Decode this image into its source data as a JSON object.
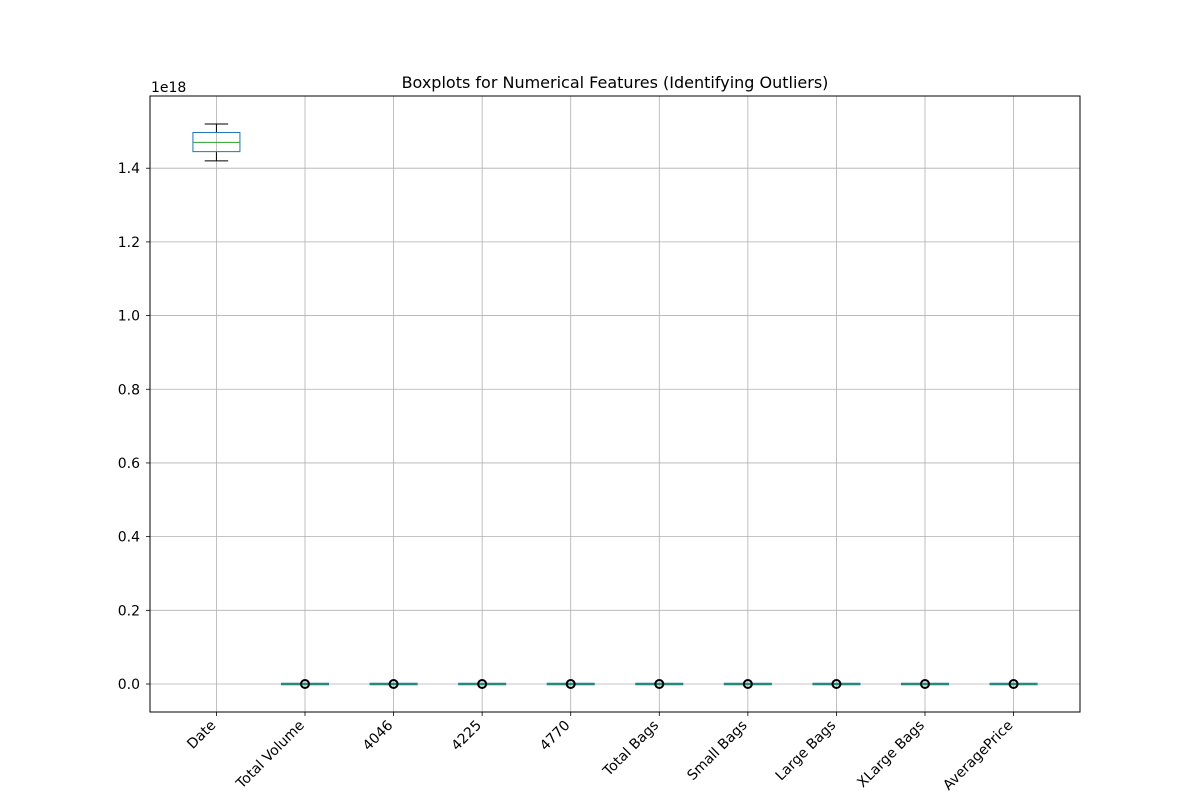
{
  "chart_data": {
    "type": "box",
    "title": "Boxplots for Numerical Features (Identifying Outliers)",
    "xlabel": "",
    "ylabel": "",
    "y_scale_offset_label": "1e18",
    "ylim": [
      -0.076,
      1.596
    ],
    "y_ticks": [
      0.0,
      0.2,
      0.4,
      0.6,
      0.8,
      1.0,
      1.2,
      1.4
    ],
    "y_tick_labels": [
      "0.0",
      "0.2",
      "0.4",
      "0.6",
      "0.8",
      "1.0",
      "1.2",
      "1.4"
    ],
    "grid": true,
    "categories": [
      "Date",
      "Total Volume",
      "4046",
      "4225",
      "4770",
      "Total Bags",
      "Small Bags",
      "Large Bags",
      "XLarge Bags",
      "AveragePrice"
    ],
    "boxes": [
      {
        "category": "Date",
        "whisker_low": 1.42,
        "q1": 1.445,
        "median": 1.47,
        "q3": 1.497,
        "whisker_high": 1.52,
        "has_outliers": false
      },
      {
        "category": "Total Volume",
        "whisker_low": 0,
        "q1": 0,
        "median": 0,
        "q3": 0,
        "whisker_high": 0,
        "has_outliers": true
      },
      {
        "category": "4046",
        "whisker_low": 0,
        "q1": 0,
        "median": 0,
        "q3": 0,
        "whisker_high": 0,
        "has_outliers": true
      },
      {
        "category": "4225",
        "whisker_low": 0,
        "q1": 0,
        "median": 0,
        "q3": 0,
        "whisker_high": 0,
        "has_outliers": true
      },
      {
        "category": "4770",
        "whisker_low": 0,
        "q1": 0,
        "median": 0,
        "q3": 0,
        "whisker_high": 0,
        "has_outliers": true
      },
      {
        "category": "Total Bags",
        "whisker_low": 0,
        "q1": 0,
        "median": 0,
        "q3": 0,
        "whisker_high": 0,
        "has_outliers": true
      },
      {
        "category": "Small Bags",
        "whisker_low": 0,
        "q1": 0,
        "median": 0,
        "q3": 0,
        "whisker_high": 0,
        "has_outliers": true
      },
      {
        "category": "Large Bags",
        "whisker_low": 0,
        "q1": 0,
        "median": 0,
        "q3": 0,
        "whisker_high": 0,
        "has_outliers": true
      },
      {
        "category": "XLarge Bags",
        "whisker_low": 0,
        "q1": 0,
        "median": 0,
        "q3": 0,
        "whisker_high": 0,
        "has_outliers": true
      },
      {
        "category": "AveragePrice",
        "whisker_low": 0,
        "q1": 0,
        "median": 0,
        "q3": 0,
        "whisker_high": 0,
        "has_outliers": true
      }
    ],
    "colors": {
      "box": "#1f77b4",
      "median": "#2ca02c",
      "whisker": "#000000",
      "grid": "#b0b0b0",
      "outlier_edge": "#000000"
    }
  }
}
